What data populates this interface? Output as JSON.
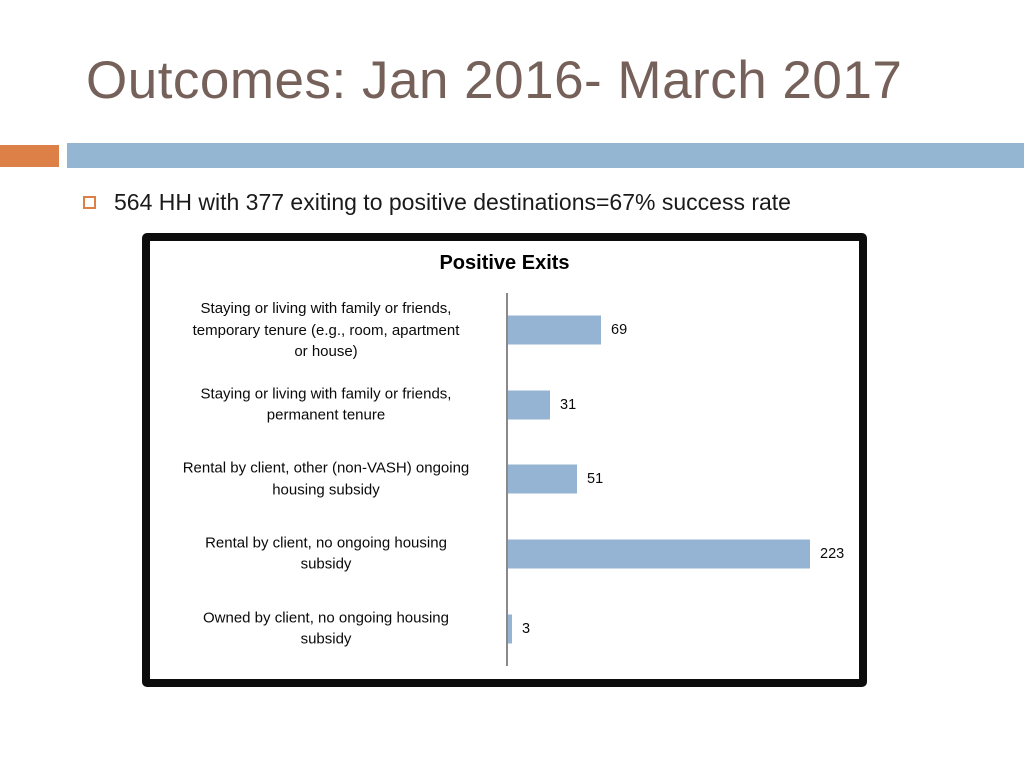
{
  "slide": {
    "title": "Outcomes: Jan 2016- March 2017",
    "bullet": "564 HH with 377 exiting to positive destinations=67% success rate"
  },
  "colors": {
    "accent_orange": "#DD8047",
    "band_blue": "#94B6D2",
    "bar_fill": "#95B4D3",
    "title_brown": "#75615A",
    "axis_gray": "#8A8A8A",
    "frame_black": "#0D0D0D",
    "text_black": "#1A1A1A"
  },
  "chart_data": {
    "type": "bar",
    "orientation": "horizontal",
    "title": "Positive Exits",
    "categories": [
      "Staying or living with family or friends,\ntemporary tenure (e.g., room, apartment\nor house)",
      "Staying or living with family or friends,\npermanent tenure",
      "Rental by client, other (non-VASH) ongoing\nhousing subsidy",
      "Rental by client, no ongoing housing\nsubsidy",
      "Owned by client, no ongoing housing\nsubsidy"
    ],
    "values": [
      69,
      31,
      51,
      223,
      3
    ],
    "data_labels": true,
    "xlim": [
      0,
      240
    ],
    "grid": false,
    "legend": "none",
    "category_axis": "left-vertical-line"
  }
}
